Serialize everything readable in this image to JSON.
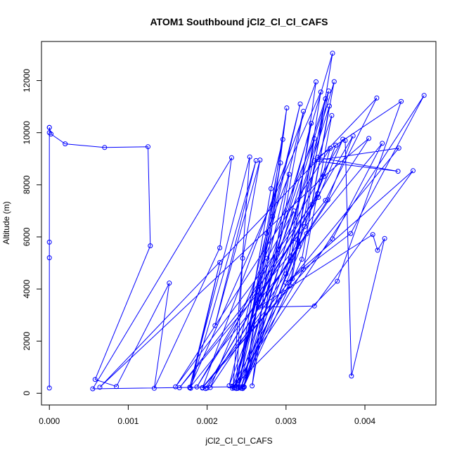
{
  "chart_data": {
    "type": "scatter",
    "style": "points-connected-by-lines",
    "title": "ATOM1 Southbound jCl2_Cl_Cl_CAFS",
    "xlabel": "jCl2_Cl_Cl_CAFS",
    "ylabel": "Altitude (m)",
    "xlim": [
      -0.0001,
      0.0049
    ],
    "ylim": [
      -450,
      13500
    ],
    "xticks": [
      0.0,
      0.001,
      0.002,
      0.003,
      0.004
    ],
    "xtick_labels": [
      "0.000",
      "0.001",
      "0.002",
      "0.003",
      "0.004"
    ],
    "yticks": [
      0,
      2000,
      4000,
      6000,
      8000,
      10000,
      12000
    ],
    "ytick_labels": [
      "0",
      "2000",
      "4000",
      "6000",
      "8000",
      "10000",
      "12000"
    ],
    "grid": false,
    "legend": "none",
    "color": "#0000ff",
    "series": [
      {
        "points": [
          [
            0.0,
            10200
          ],
          [
            0.0,
            10000
          ],
          [
            0.0,
            5800
          ],
          [
            0.0,
            5200
          ],
          [
            0.0,
            200
          ],
          [
            0.0,
            10200
          ],
          [
            2e-05,
            9950
          ],
          [
            0.0002,
            9570
          ],
          [
            0.0007,
            9430
          ],
          [
            0.00125,
            9460
          ],
          [
            0.00128,
            5660
          ],
          [
            0.00058,
            530
          ],
          [
            0.00085,
            260
          ],
          [
            0.00152,
            4230
          ],
          [
            0.00133,
            190
          ],
          [
            0.00216,
            5580
          ],
          [
            0.00231,
            9040
          ],
          [
            0.00055,
            170
          ],
          [
            0.00233,
            250
          ],
          [
            0.00254,
            9070
          ],
          [
            0.00178,
            230
          ],
          [
            0.00216,
            5020
          ],
          [
            0.00179,
            190
          ],
          [
            0.00262,
            8930
          ],
          [
            0.0021,
            2600
          ],
          [
            0.00267,
            8950
          ],
          [
            0.00245,
            5180
          ],
          [
            0.00237,
            180
          ],
          [
            0.00281,
            7850
          ],
          [
            0.00296,
            9740
          ],
          [
            0.0024,
            250
          ],
          [
            0.00293,
            8840
          ],
          [
            0.00247,
            240
          ],
          [
            0.00301,
            10950
          ],
          [
            0.00257,
            280
          ],
          [
            0.00304,
            8400
          ],
          [
            0.00275,
            6140
          ],
          [
            0.00228,
            290
          ],
          [
            0.0031,
            7000
          ],
          [
            0.00276,
            5180
          ],
          [
            0.00235,
            230
          ],
          [
            0.00318,
            11100
          ],
          [
            0.00283,
            6780
          ],
          [
            0.00239,
            210
          ],
          [
            0.00322,
            10820
          ],
          [
            0.0029,
            5520
          ],
          [
            0.00243,
            190
          ],
          [
            0.00332,
            10360
          ],
          [
            0.003,
            4580
          ],
          [
            0.00204,
            220
          ],
          [
            0.00336,
            9770
          ],
          [
            0.00305,
            4120
          ],
          [
            0.00194,
            200
          ],
          [
            0.00338,
            11950
          ],
          [
            0.00306,
            5080
          ],
          [
            0.00178,
            210
          ],
          [
            0.00344,
            11560
          ],
          [
            0.00308,
            4400
          ],
          [
            0.00232,
            270
          ],
          [
            0.0035,
            11300
          ],
          [
            0.00314,
            5900
          ],
          [
            0.00239,
            190
          ],
          [
            0.00354,
            11600
          ],
          [
            0.00316,
            5640
          ],
          [
            0.00243,
            240
          ],
          [
            0.00355,
            11020
          ],
          [
            0.0032,
            5140
          ],
          [
            0.00246,
            220
          ],
          [
            0.00358,
            10660
          ],
          [
            0.00322,
            4760
          ],
          [
            0.00234,
            200
          ],
          [
            0.00359,
            13050
          ],
          [
            0.00324,
            6400
          ],
          [
            0.00246,
            260
          ],
          [
            0.00361,
            11960
          ],
          [
            0.00326,
            6120
          ],
          [
            0.00245,
            180
          ],
          [
            0.00363,
            9520
          ],
          [
            0.00333,
            7250
          ],
          [
            0.0016,
            250
          ],
          [
            0.00356,
            9400
          ],
          [
            0.0034,
            7660
          ],
          [
            0.00187,
            240
          ],
          [
            0.00372,
            9750
          ],
          [
            0.00341,
            7520
          ],
          [
            0.00198,
            180
          ],
          [
            0.00385,
            9880
          ],
          [
            0.00353,
            7420
          ],
          [
            0.002,
            200
          ],
          [
            0.00405,
            9780
          ],
          [
            0.00348,
            8320
          ],
          [
            0.00064,
            230
          ],
          [
            0.00415,
            11330
          ],
          [
            0.0035,
            7400
          ],
          [
            0.00165,
            210
          ],
          [
            0.00422,
            9590
          ],
          [
            0.00359,
            5920
          ],
          [
            0.00194,
            220
          ],
          [
            0.00443,
            9410
          ],
          [
            0.00336,
            8920
          ],
          [
            0.00442,
            8520
          ],
          [
            0.0034,
            9050
          ],
          [
            0.00446,
            11200
          ],
          [
            0.00365,
            4300
          ],
          [
            0.00232,
            190
          ],
          [
            0.00475,
            11430
          ],
          [
            0.00382,
            6130
          ],
          [
            0.003,
            4240
          ],
          [
            0.00461,
            8540
          ],
          [
            0.00336,
            3350
          ],
          [
            0.00265,
            3300
          ],
          [
            0.0041,
            6090
          ],
          [
            0.00416,
            5490
          ],
          [
            0.00425,
            5940
          ],
          [
            0.00383,
            660
          ],
          [
            0.00375,
            9700
          ]
        ]
      }
    ]
  }
}
